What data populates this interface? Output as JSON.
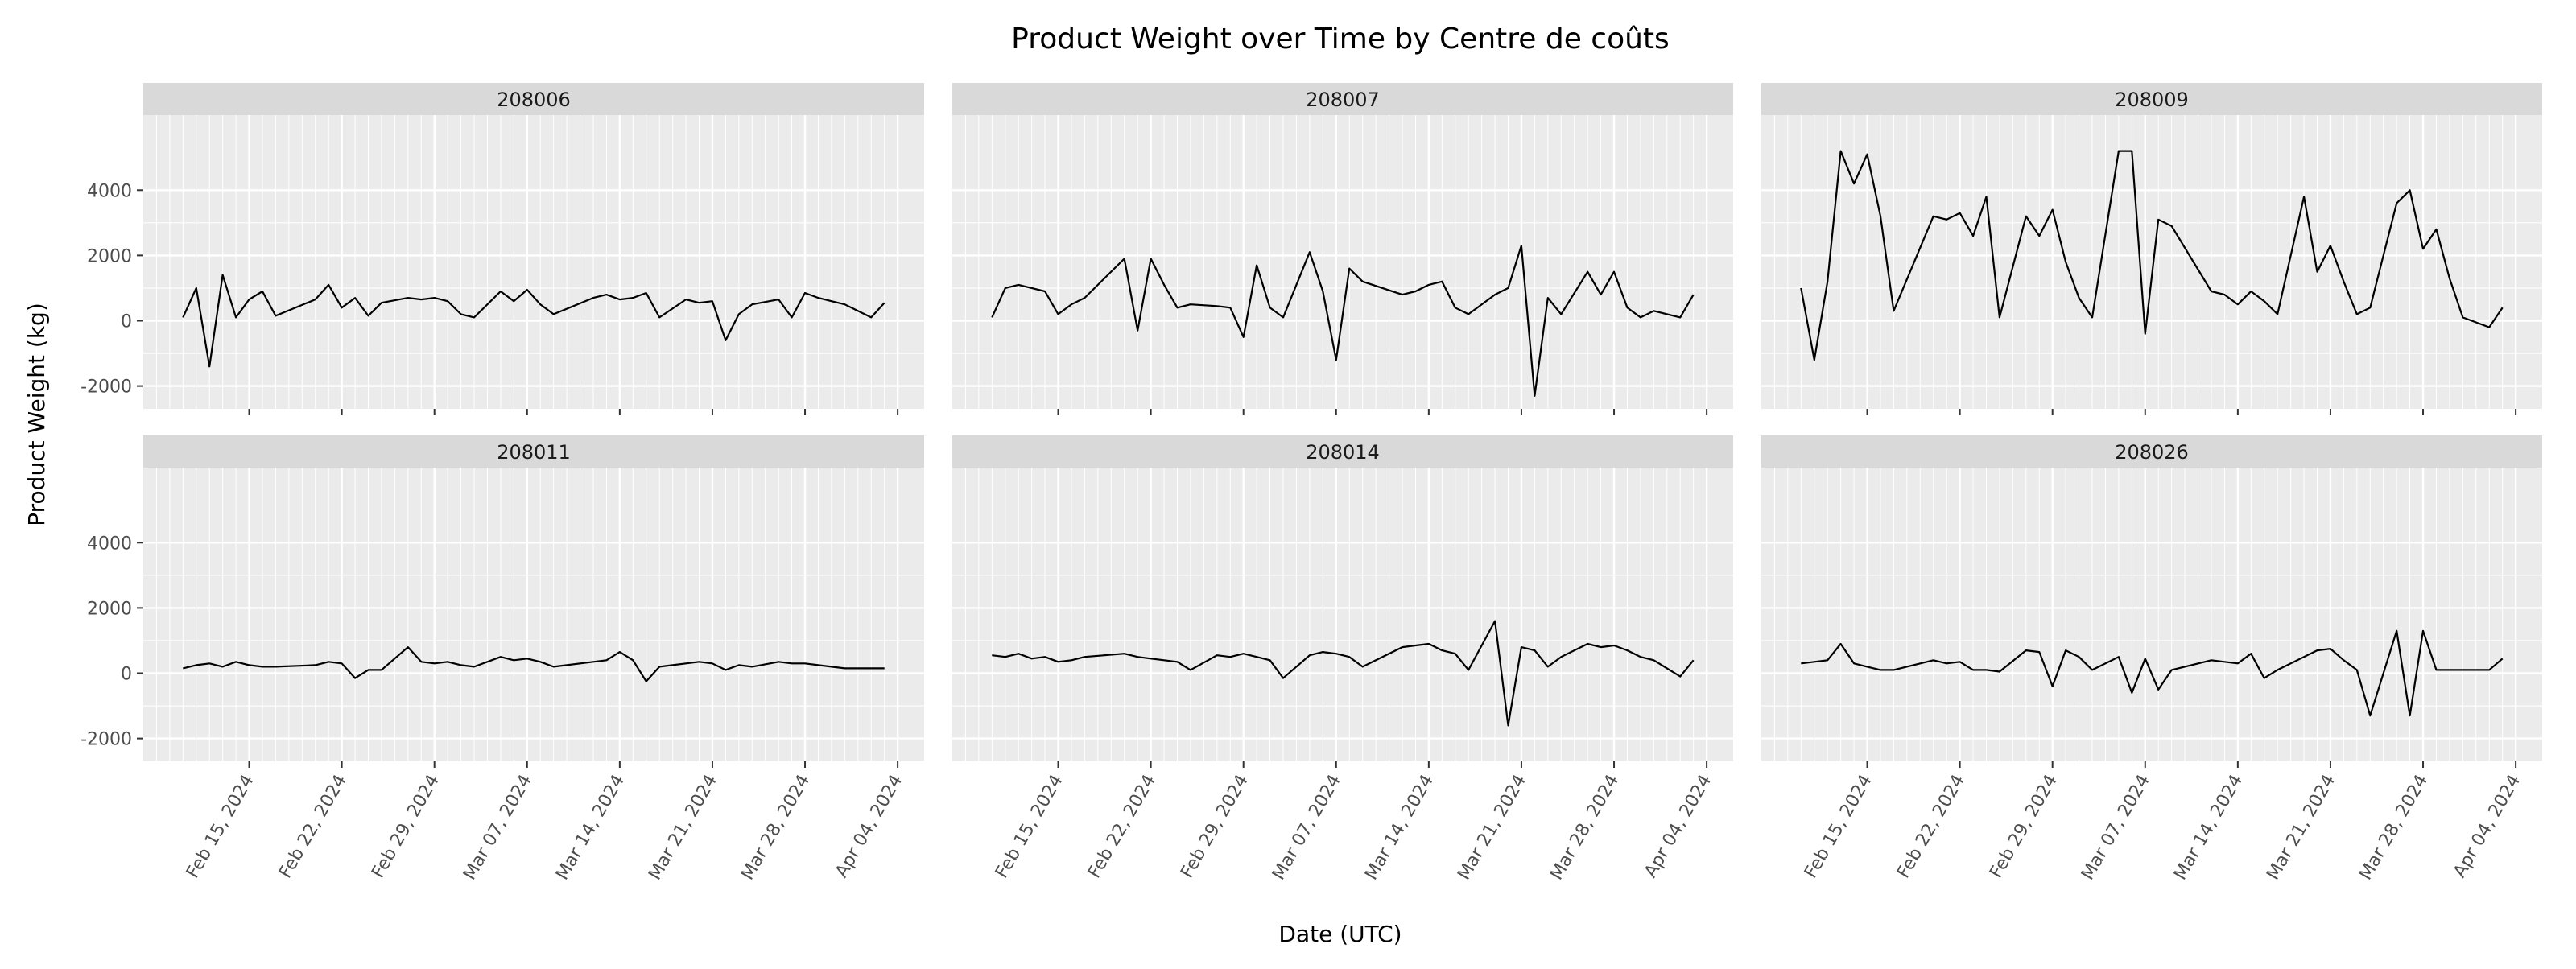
{
  "chart_data": {
    "type": "line",
    "title": "Product Weight over Time by Centre de coûts",
    "xlabel": "Date (UTC)",
    "ylabel": "Product Weight (kg)",
    "x_ticks": [
      "Feb 15, 2024",
      "Feb 22, 2024",
      "Feb 29, 2024",
      "Mar 07, 2024",
      "Mar 14, 2024",
      "Mar 21, 2024",
      "Mar 28, 2024",
      "Apr 04, 2024"
    ],
    "y_ticks": [
      "-2000",
      "0",
      "2000",
      "4000"
    ],
    "xlim": [
      "2024-02-07",
      "2024-04-06"
    ],
    "ylim": [
      -2700,
      6300
    ],
    "grid": true,
    "facets": [
      {
        "label": "208006",
        "series": [
          {
            "x": [
              "2024-02-10",
              "2024-02-11",
              "2024-02-12",
              "2024-02-13",
              "2024-02-14",
              "2024-02-15",
              "2024-02-16",
              "2024-02-17",
              "2024-02-20",
              "2024-02-21",
              "2024-02-22",
              "2024-02-23",
              "2024-02-24",
              "2024-02-25",
              "2024-02-27",
              "2024-02-28",
              "2024-02-29",
              "2024-03-01",
              "2024-03-02",
              "2024-03-03",
              "2024-03-05",
              "2024-03-06",
              "2024-03-07",
              "2024-03-08",
              "2024-03-09",
              "2024-03-12",
              "2024-03-13",
              "2024-03-14",
              "2024-03-15",
              "2024-03-16",
              "2024-03-17",
              "2024-03-19",
              "2024-03-20",
              "2024-03-21",
              "2024-03-22",
              "2024-03-23",
              "2024-03-24",
              "2024-03-26",
              "2024-03-27",
              "2024-03-28",
              "2024-03-29",
              "2024-03-30",
              "2024-03-31",
              "2024-04-02",
              "2024-04-03"
            ],
            "y": [
              100,
              1000,
              -1400,
              1400,
              100,
              650,
              900,
              150,
              650,
              1100,
              400,
              700,
              150,
              550,
              700,
              650,
              700,
              600,
              200,
              100,
              900,
              600,
              950,
              500,
              200,
              700,
              800,
              650,
              700,
              850,
              100,
              650,
              550,
              600,
              -600,
              200,
              500,
              650,
              100,
              850,
              700,
              600,
              500,
              100,
              550
            ]
          }
        ]
      },
      {
        "label": "208007",
        "series": [
          {
            "x": [
              "2024-02-10",
              "2024-02-11",
              "2024-02-12",
              "2024-02-13",
              "2024-02-14",
              "2024-02-15",
              "2024-02-16",
              "2024-02-17",
              "2024-02-20",
              "2024-02-21",
              "2024-02-22",
              "2024-02-23",
              "2024-02-24",
              "2024-02-25",
              "2024-02-27",
              "2024-02-28",
              "2024-02-29",
              "2024-03-01",
              "2024-03-02",
              "2024-03-03",
              "2024-03-05",
              "2024-03-06",
              "2024-03-07",
              "2024-03-08",
              "2024-03-09",
              "2024-03-12",
              "2024-03-13",
              "2024-03-14",
              "2024-03-15",
              "2024-03-16",
              "2024-03-17",
              "2024-03-19",
              "2024-03-20",
              "2024-03-21",
              "2024-03-22",
              "2024-03-23",
              "2024-03-24",
              "2024-03-26",
              "2024-03-27",
              "2024-03-28",
              "2024-03-29",
              "2024-03-30",
              "2024-03-31",
              "2024-04-02",
              "2024-04-03"
            ],
            "y": [
              100,
              1000,
              1100,
              1000,
              900,
              200,
              500,
              700,
              1900,
              -300,
              1900,
              1100,
              400,
              500,
              450,
              400,
              -500,
              1700,
              400,
              100,
              2100,
              900,
              -1200,
              1600,
              1200,
              800,
              900,
              1100,
              1200,
              400,
              200,
              800,
              1000,
              2300,
              -2300,
              700,
              200,
              1500,
              800,
              1500,
              400,
              100,
              300,
              100,
              800
            ]
          }
        ]
      },
      {
        "label": "208009",
        "series": [
          {
            "x": [
              "2024-02-10",
              "2024-02-11",
              "2024-02-12",
              "2024-02-13",
              "2024-02-14",
              "2024-02-15",
              "2024-02-16",
              "2024-02-17",
              "2024-02-20",
              "2024-02-21",
              "2024-02-22",
              "2024-02-23",
              "2024-02-24",
              "2024-02-25",
              "2024-02-27",
              "2024-02-28",
              "2024-02-29",
              "2024-03-01",
              "2024-03-02",
              "2024-03-03",
              "2024-03-05",
              "2024-03-06",
              "2024-03-07",
              "2024-03-08",
              "2024-03-09",
              "2024-03-12",
              "2024-03-13",
              "2024-03-14",
              "2024-03-15",
              "2024-03-16",
              "2024-03-17",
              "2024-03-19",
              "2024-03-20",
              "2024-03-21",
              "2024-03-22",
              "2024-03-23",
              "2024-03-24",
              "2024-03-26",
              "2024-03-27",
              "2024-03-28",
              "2024-03-29",
              "2024-03-30",
              "2024-03-31",
              "2024-04-02",
              "2024-04-03"
            ],
            "y": [
              1000,
              -1200,
              1200,
              5200,
              4200,
              5100,
              3200,
              300,
              3200,
              3100,
              3300,
              2600,
              3800,
              100,
              3200,
              2600,
              3400,
              1800,
              700,
              100,
              5200,
              5200,
              -400,
              3100,
              2900,
              900,
              800,
              500,
              900,
              600,
              200,
              3800,
              1500,
              2300,
              1200,
              200,
              400,
              3600,
              4000,
              2200,
              2800,
              1300,
              100,
              -200,
              400
            ]
          }
        ]
      },
      {
        "label": "208011",
        "series": [
          {
            "x": [
              "2024-02-10",
              "2024-02-11",
              "2024-02-12",
              "2024-02-13",
              "2024-02-14",
              "2024-02-15",
              "2024-02-16",
              "2024-02-17",
              "2024-02-20",
              "2024-02-21",
              "2024-02-22",
              "2024-02-23",
              "2024-02-24",
              "2024-02-25",
              "2024-02-27",
              "2024-02-28",
              "2024-02-29",
              "2024-03-01",
              "2024-03-02",
              "2024-03-03",
              "2024-03-05",
              "2024-03-06",
              "2024-03-07",
              "2024-03-08",
              "2024-03-09",
              "2024-03-12",
              "2024-03-13",
              "2024-03-14",
              "2024-03-15",
              "2024-03-16",
              "2024-03-17",
              "2024-03-19",
              "2024-03-20",
              "2024-03-21",
              "2024-03-22",
              "2024-03-23",
              "2024-03-24",
              "2024-03-26",
              "2024-03-27",
              "2024-03-28",
              "2024-03-29",
              "2024-03-30",
              "2024-03-31",
              "2024-04-02",
              "2024-04-03"
            ],
            "y": [
              150,
              250,
              300,
              200,
              350,
              250,
              200,
              200,
              250,
              350,
              300,
              -150,
              100,
              100,
              800,
              350,
              300,
              350,
              250,
              200,
              500,
              400,
              450,
              350,
              200,
              350,
              400,
              650,
              400,
              -250,
              200,
              300,
              350,
              300,
              100,
              250,
              200,
              350,
              300,
              300,
              250,
              200,
              150,
              150,
              150
            ]
          }
        ]
      },
      {
        "label": "208014",
        "series": [
          {
            "x": [
              "2024-02-10",
              "2024-02-11",
              "2024-02-12",
              "2024-02-13",
              "2024-02-14",
              "2024-02-15",
              "2024-02-16",
              "2024-02-17",
              "2024-02-20",
              "2024-02-21",
              "2024-02-22",
              "2024-02-23",
              "2024-02-24",
              "2024-02-25",
              "2024-02-27",
              "2024-02-28",
              "2024-02-29",
              "2024-03-01",
              "2024-03-02",
              "2024-03-03",
              "2024-03-05",
              "2024-03-06",
              "2024-03-07",
              "2024-03-08",
              "2024-03-09",
              "2024-03-12",
              "2024-03-13",
              "2024-03-14",
              "2024-03-15",
              "2024-03-16",
              "2024-03-17",
              "2024-03-19",
              "2024-03-20",
              "2024-03-21",
              "2024-03-22",
              "2024-03-23",
              "2024-03-24",
              "2024-03-26",
              "2024-03-27",
              "2024-03-28",
              "2024-03-29",
              "2024-03-30",
              "2024-03-31",
              "2024-04-02",
              "2024-04-03"
            ],
            "y": [
              550,
              500,
              600,
              450,
              500,
              350,
              400,
              500,
              600,
              500,
              450,
              400,
              350,
              100,
              550,
              500,
              600,
              500,
              400,
              -150,
              550,
              650,
              600,
              500,
              200,
              800,
              850,
              900,
              700,
              600,
              100,
              1600,
              -1600,
              800,
              700,
              200,
              500,
              900,
              800,
              850,
              700,
              500,
              400,
              -100,
              400
            ]
          }
        ]
      },
      {
        "label": "208026",
        "series": [
          {
            "x": [
              "2024-02-10",
              "2024-02-11",
              "2024-02-12",
              "2024-02-13",
              "2024-02-14",
              "2024-02-15",
              "2024-02-16",
              "2024-02-17",
              "2024-02-20",
              "2024-02-21",
              "2024-02-22",
              "2024-02-23",
              "2024-02-24",
              "2024-02-25",
              "2024-02-27",
              "2024-02-28",
              "2024-02-29",
              "2024-03-01",
              "2024-03-02",
              "2024-03-03",
              "2024-03-05",
              "2024-03-06",
              "2024-03-07",
              "2024-03-08",
              "2024-03-09",
              "2024-03-12",
              "2024-03-13",
              "2024-03-14",
              "2024-03-15",
              "2024-03-16",
              "2024-03-17",
              "2024-03-19",
              "2024-03-20",
              "2024-03-21",
              "2024-03-22",
              "2024-03-23",
              "2024-03-24",
              "2024-03-26",
              "2024-03-27",
              "2024-03-28",
              "2024-03-29",
              "2024-03-30",
              "2024-03-31",
              "2024-04-02",
              "2024-04-03"
            ],
            "y": [
              300,
              350,
              400,
              900,
              300,
              200,
              100,
              100,
              400,
              300,
              350,
              100,
              100,
              50,
              700,
              650,
              -400,
              700,
              500,
              100,
              500,
              -600,
              450,
              -500,
              100,
              400,
              350,
              300,
              600,
              -150,
              100,
              500,
              700,
              750,
              400,
              100,
              -1300,
              1300,
              -1300,
              1300,
              100,
              100,
              100,
              100,
              450
            ]
          }
        ]
      }
    ]
  }
}
